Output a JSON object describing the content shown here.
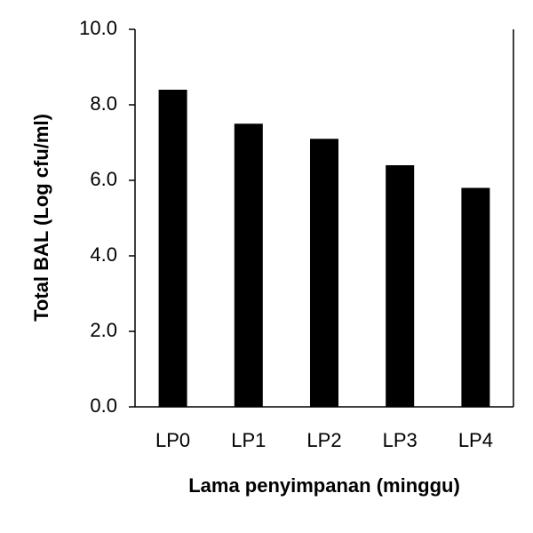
{
  "chart_data": {
    "type": "bar",
    "x_label": "Lama penyimpanan (minggu)",
    "y_label": "Total BAL (Log cfu/ml)",
    "categories": [
      "LP0",
      "LP1",
      "LP2",
      "LP3",
      "LP4"
    ],
    "values": [
      8.4,
      7.5,
      7.1,
      6.4,
      5.8
    ],
    "color": "#000000",
    "ylim": [
      0,
      10
    ],
    "yticks": [
      {
        "value": 0,
        "label": "0.0"
      },
      {
        "value": 2,
        "label": "2.0"
      },
      {
        "value": 4,
        "label": "4.0"
      },
      {
        "value": 6,
        "label": "6.0"
      },
      {
        "value": 8,
        "label": "8.0"
      },
      {
        "value": 10,
        "label": "10.0"
      }
    ],
    "grid": false
  }
}
